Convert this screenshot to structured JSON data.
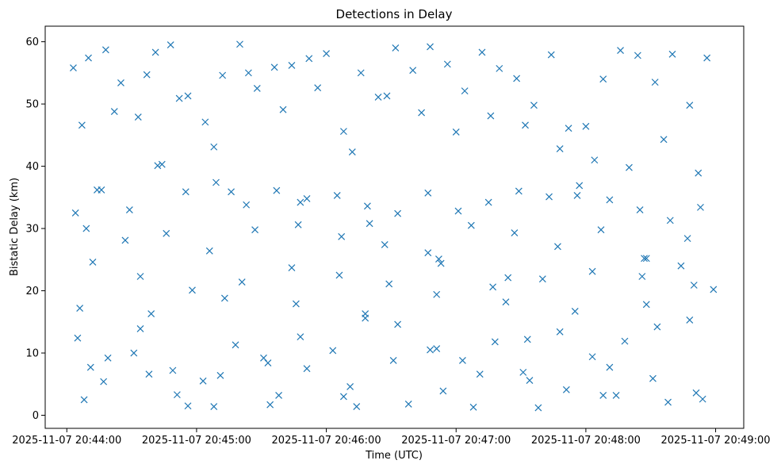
{
  "chart_data": {
    "type": "scatter",
    "title": "Detections in Delay",
    "xlabel": "Time (UTC)",
    "ylabel": "Bistatic Delay (km)",
    "x_tick_labels": [
      "2025-11-07 20:44:00",
      "2025-11-07 20:45:00",
      "2025-11-07 20:46:00",
      "2025-11-07 20:47:00",
      "2025-11-07 20:48:00",
      "2025-11-07 20:49:00"
    ],
    "y_tick_labels": [
      "0",
      "10",
      "20",
      "30",
      "40",
      "50",
      "60"
    ],
    "xlim": [
      "2025-11-07 20:43:50",
      "2025-11-07 20:49:13"
    ],
    "ylim": [
      -2.1,
      62.5
    ],
    "marker": "x",
    "color": "#1f77b4",
    "grid": false,
    "series": [
      {
        "x": [
          "2025-11-07 20:44:03",
          "2025-11-07 20:44:10",
          "2025-11-07 20:44:18",
          "2025-11-07 20:44:25",
          "2025-11-07 20:44:33",
          "2025-11-07 20:44:41",
          "2025-11-07 20:44:48",
          "2025-11-07 20:44:56",
          "2025-11-07 20:45:04",
          "2025-11-07 20:45:12",
          "2025-11-07 20:45:20",
          "2025-11-07 20:45:28",
          "2025-11-07 20:45:36",
          "2025-11-07 20:45:44",
          "2025-11-07 20:45:52",
          "2025-11-07 20:46:00",
          "2025-11-07 20:46:08",
          "2025-11-07 20:46:16",
          "2025-11-07 20:46:24",
          "2025-11-07 20:46:32",
          "2025-11-07 20:46:40",
          "2025-11-07 20:46:48",
          "2025-11-07 20:46:56",
          "2025-11-07 20:47:04",
          "2025-11-07 20:47:12",
          "2025-11-07 20:47:20",
          "2025-11-07 20:47:28",
          "2025-11-07 20:47:36",
          "2025-11-07 20:47:44",
          "2025-11-07 20:47:52",
          "2025-11-07 20:48:00",
          "2025-11-07 20:48:08",
          "2025-11-07 20:48:16",
          "2025-11-07 20:48:24",
          "2025-11-07 20:48:32",
          "2025-11-07 20:48:40",
          "2025-11-07 20:48:48",
          "2025-11-07 20:48:56",
          "2025-11-07 20:44:07",
          "2025-11-07 20:44:22",
          "2025-11-07 20:44:37",
          "2025-11-07 20:44:52",
          "2025-11-07 20:45:08",
          "2025-11-07 20:45:24",
          "2025-11-07 20:45:40",
          "2025-11-07 20:45:56",
          "2025-11-07 20:46:12",
          "2025-11-07 20:46:28",
          "2025-11-07 20:46:44",
          "2025-11-07 20:47:00",
          "2025-11-07 20:47:16",
          "2025-11-07 20:47:32",
          "2025-11-07 20:47:48",
          "2025-11-07 20:48:04",
          "2025-11-07 20:48:20",
          "2025-11-07 20:48:36",
          "2025-11-07 20:48:52",
          "2025-11-07 20:44:14",
          "2025-11-07 20:44:44",
          "2025-11-07 20:45:16",
          "2025-11-07 20:45:48",
          "2025-11-07 20:46:20",
          "2025-11-07 20:46:52",
          "2025-11-07 20:47:24",
          "2025-11-07 20:47:56",
          "2025-11-07 20:48:28",
          "2025-11-07 20:48:44"
        ],
        "y": [
          55.8,
          57.4,
          58.7,
          53.4,
          47.9,
          58.3,
          59.5,
          51.3,
          47.1,
          54.6,
          59.6,
          52.5,
          55.9,
          56.2,
          57.3,
          58.1,
          45.6,
          55.0,
          51.1,
          59.0,
          55.4,
          59.2,
          56.4,
          52.1,
          58.3,
          55.7,
          54.1,
          49.8,
          57.9,
          46.1,
          46.4,
          54.0,
          58.6,
          57.8,
          53.5,
          58.0,
          49.8,
          57.4,
          46.6,
          48.8,
          54.7,
          50.9,
          43.1,
          55.0,
          49.1,
          52.6,
          42.3,
          51.3,
          48.6,
          45.5,
          48.1,
          46.6,
          42.8,
          41.0,
          39.8,
          44.3,
          38.9,
          36.2,
          40.3,
          35.9,
          34.2,
          30.8,
          25.1,
          22.1,
          35.3,
          25.2,
          24.0
        ]
      },
      {
        "x": [
          "2025-11-07 20:44:04",
          "2025-11-07 20:44:16",
          "2025-11-07 20:44:29",
          "2025-11-07 20:44:42",
          "2025-11-07 20:44:55",
          "2025-11-07 20:45:09",
          "2025-11-07 20:45:23",
          "2025-11-07 20:45:37",
          "2025-11-07 20:45:51",
          "2025-11-07 20:46:05",
          "2025-11-07 20:46:19",
          "2025-11-07 20:46:33",
          "2025-11-07 20:46:47",
          "2025-11-07 20:47:01",
          "2025-11-07 20:47:15",
          "2025-11-07 20:47:29",
          "2025-11-07 20:47:43",
          "2025-11-07 20:47:57",
          "2025-11-07 20:48:11",
          "2025-11-07 20:48:25",
          "2025-11-07 20:48:39",
          "2025-11-07 20:48:53",
          "2025-11-07 20:44:09",
          "2025-11-07 20:44:27",
          "2025-11-07 20:44:46",
          "2025-11-07 20:45:06",
          "2025-11-07 20:45:27",
          "2025-11-07 20:45:47",
          "2025-11-07 20:46:07",
          "2025-11-07 20:46:27",
          "2025-11-07 20:46:47",
          "2025-11-07 20:47:07",
          "2025-11-07 20:47:27",
          "2025-11-07 20:47:47",
          "2025-11-07 20:48:07",
          "2025-11-07 20:48:27",
          "2025-11-07 20:48:47",
          "2025-11-07 20:44:12",
          "2025-11-07 20:44:34",
          "2025-11-07 20:44:58",
          "2025-11-07 20:45:21",
          "2025-11-07 20:45:44",
          "2025-11-07 20:46:06",
          "2025-11-07 20:46:29",
          "2025-11-07 20:46:53",
          "2025-11-07 20:47:17",
          "2025-11-07 20:47:40",
          "2025-11-07 20:48:03",
          "2025-11-07 20:48:26",
          "2025-11-07 20:48:50",
          "2025-11-07 20:44:06",
          "2025-11-07 20:44:39",
          "2025-11-07 20:45:13",
          "2025-11-07 20:45:46",
          "2025-11-07 20:46:18",
          "2025-11-07 20:46:51",
          "2025-11-07 20:47:23",
          "2025-11-07 20:47:55",
          "2025-11-07 20:48:28",
          "2025-11-07 20:48:59"
        ],
        "y": [
          32.5,
          36.2,
          33.0,
          40.1,
          35.9,
          37.4,
          33.8,
          36.1,
          34.8,
          35.3,
          33.6,
          32.4,
          35.7,
          32.8,
          34.2,
          36.0,
          35.1,
          36.9,
          34.6,
          33.0,
          31.3,
          33.4,
          30.0,
          28.1,
          29.2,
          26.4,
          29.8,
          30.6,
          28.7,
          27.4,
          26.1,
          30.5,
          29.3,
          27.1,
          29.8,
          25.2,
          28.4,
          24.6,
          22.3,
          20.1,
          21.4,
          23.7,
          22.5,
          21.1,
          24.4,
          20.6,
          21.9,
          23.1,
          22.3,
          20.9,
          17.2,
          16.3,
          18.8,
          17.9,
          15.6,
          19.4,
          18.2,
          16.7,
          17.8,
          20.2
        ]
      },
      {
        "x": [
          "2025-11-07 20:44:05",
          "2025-11-07 20:44:19",
          "2025-11-07 20:44:34",
          "2025-11-07 20:44:49",
          "2025-11-07 20:45:03",
          "2025-11-07 20:45:18",
          "2025-11-07 20:45:33",
          "2025-11-07 20:45:48",
          "2025-11-07 20:46:03",
          "2025-11-07 20:46:18",
          "2025-11-07 20:46:33",
          "2025-11-07 20:46:48",
          "2025-11-07 20:47:03",
          "2025-11-07 20:47:18",
          "2025-11-07 20:47:33",
          "2025-11-07 20:47:48",
          "2025-11-07 20:48:03",
          "2025-11-07 20:48:18",
          "2025-11-07 20:48:33",
          "2025-11-07 20:48:48",
          "2025-11-07 20:44:11",
          "2025-11-07 20:44:31",
          "2025-11-07 20:44:51",
          "2025-11-07 20:45:11",
          "2025-11-07 20:45:31",
          "2025-11-07 20:45:51",
          "2025-11-07 20:46:11",
          "2025-11-07 20:46:31",
          "2025-11-07 20:46:51",
          "2025-11-07 20:47:11",
          "2025-11-07 20:47:31",
          "2025-11-07 20:47:51",
          "2025-11-07 20:48:11",
          "2025-11-07 20:48:31",
          "2025-11-07 20:48:51",
          "2025-11-07 20:44:08",
          "2025-11-07 20:44:38",
          "2025-11-07 20:45:08",
          "2025-11-07 20:45:38",
          "2025-11-07 20:46:08",
          "2025-11-07 20:46:38",
          "2025-11-07 20:47:08",
          "2025-11-07 20:47:38",
          "2025-11-07 20:48:08",
          "2025-11-07 20:48:38",
          "2025-11-07 20:44:17",
          "2025-11-07 20:44:56",
          "2025-11-07 20:45:34",
          "2025-11-07 20:46:14",
          "2025-11-07 20:46:54",
          "2025-11-07 20:47:34",
          "2025-11-07 20:48:14",
          "2025-11-07 20:48:54"
        ],
        "y": [
          12.4,
          9.2,
          13.9,
          7.2,
          5.5,
          11.3,
          8.4,
          12.6,
          10.4,
          16.3,
          14.6,
          10.5,
          8.8,
          11.8,
          12.2,
          13.4,
          9.4,
          11.9,
          14.2,
          15.3,
          7.7,
          10.0,
          3.3,
          6.4,
          9.2,
          7.5,
          4.6,
          8.8,
          10.7,
          6.6,
          6.9,
          4.1,
          7.7,
          5.9,
          3.6,
          2.5,
          6.6,
          1.4,
          3.2,
          3.0,
          1.8,
          1.3,
          1.2,
          3.2,
          2.1,
          5.4,
          1.5,
          1.7,
          1.4,
          3.9,
          5.6,
          3.2,
          2.6
        ]
      }
    ]
  }
}
